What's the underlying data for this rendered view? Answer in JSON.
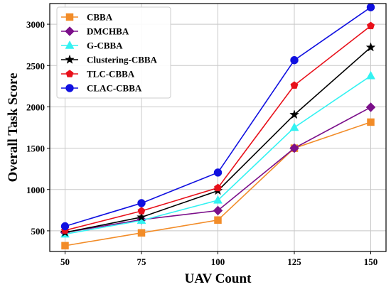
{
  "chart_data": {
    "type": "line",
    "title": "",
    "xlabel": "UAV Count",
    "ylabel": "Overall Task Score",
    "x": [
      50,
      75,
      100,
      125,
      150
    ],
    "xlim": [
      45,
      155
    ],
    "ylim": [
      250,
      3250
    ],
    "yticks": [
      500,
      1000,
      1500,
      2000,
      2500,
      3000
    ],
    "grid": true,
    "legend_position": "top-left",
    "series": [
      {
        "name": "CBBA",
        "color": "#F28C28",
        "marker": "square",
        "values": [
          320,
          475,
          630,
          1500,
          1815
        ]
      },
      {
        "name": "DMCHBA",
        "color": "#7B0F8A",
        "marker": "diamond",
        "values": [
          480,
          635,
          745,
          1500,
          1995
        ]
      },
      {
        "name": "G-CBBA",
        "color": "#33F2F2",
        "marker": "triangle",
        "values": [
          460,
          625,
          870,
          1750,
          2375
        ]
      },
      {
        "name": "Clustering-CBBA",
        "color": "#000000",
        "marker": "star",
        "values": [
          480,
          665,
          985,
          1905,
          2720
        ]
      },
      {
        "name": "TLC-CBBA",
        "color": "#E8101A",
        "marker": "pentagon",
        "values": [
          505,
          740,
          1020,
          2260,
          2980
        ]
      },
      {
        "name": "CLAC-CBBA",
        "color": "#1010E0",
        "marker": "circle",
        "values": [
          555,
          835,
          1205,
          2565,
          3205
        ]
      }
    ]
  }
}
